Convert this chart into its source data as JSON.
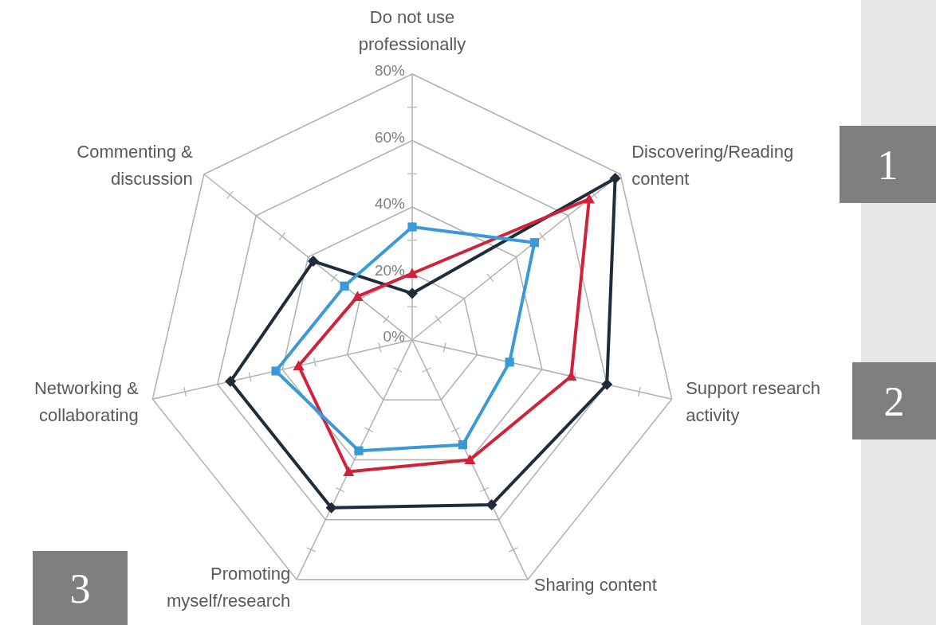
{
  "chart_data": {
    "type": "radar",
    "categories": [
      "Do not use professionally",
      "Discovering/Reading content",
      "Support research activity",
      "Sharing content",
      "Promoting myself/research",
      "Networking & collaborating",
      "Commenting & discussion"
    ],
    "series": [
      {
        "color": "#1f2d3a",
        "marker": "diamond",
        "values": [
          14,
          78,
          60,
          55,
          56,
          56,
          38
        ]
      },
      {
        "color": "#d0223a",
        "marker": "triangle",
        "values": [
          20,
          68,
          49,
          40,
          44,
          35,
          21
        ]
      },
      {
        "color": "#3a9ad9",
        "marker": "square",
        "values": [
          34,
          47,
          30,
          35,
          37,
          42,
          26
        ]
      }
    ],
    "ylim": [
      0,
      80
    ],
    "yticks": [
      {
        "value": 0,
        "label": "0%"
      },
      {
        "value": 20,
        "label": "20%"
      },
      {
        "value": 40,
        "label": "40%"
      },
      {
        "value": 60,
        "label": "60%"
      },
      {
        "value": 80,
        "label": "80%"
      }
    ],
    "grid": true,
    "annotations": [
      "1",
      "2",
      "3"
    ]
  }
}
